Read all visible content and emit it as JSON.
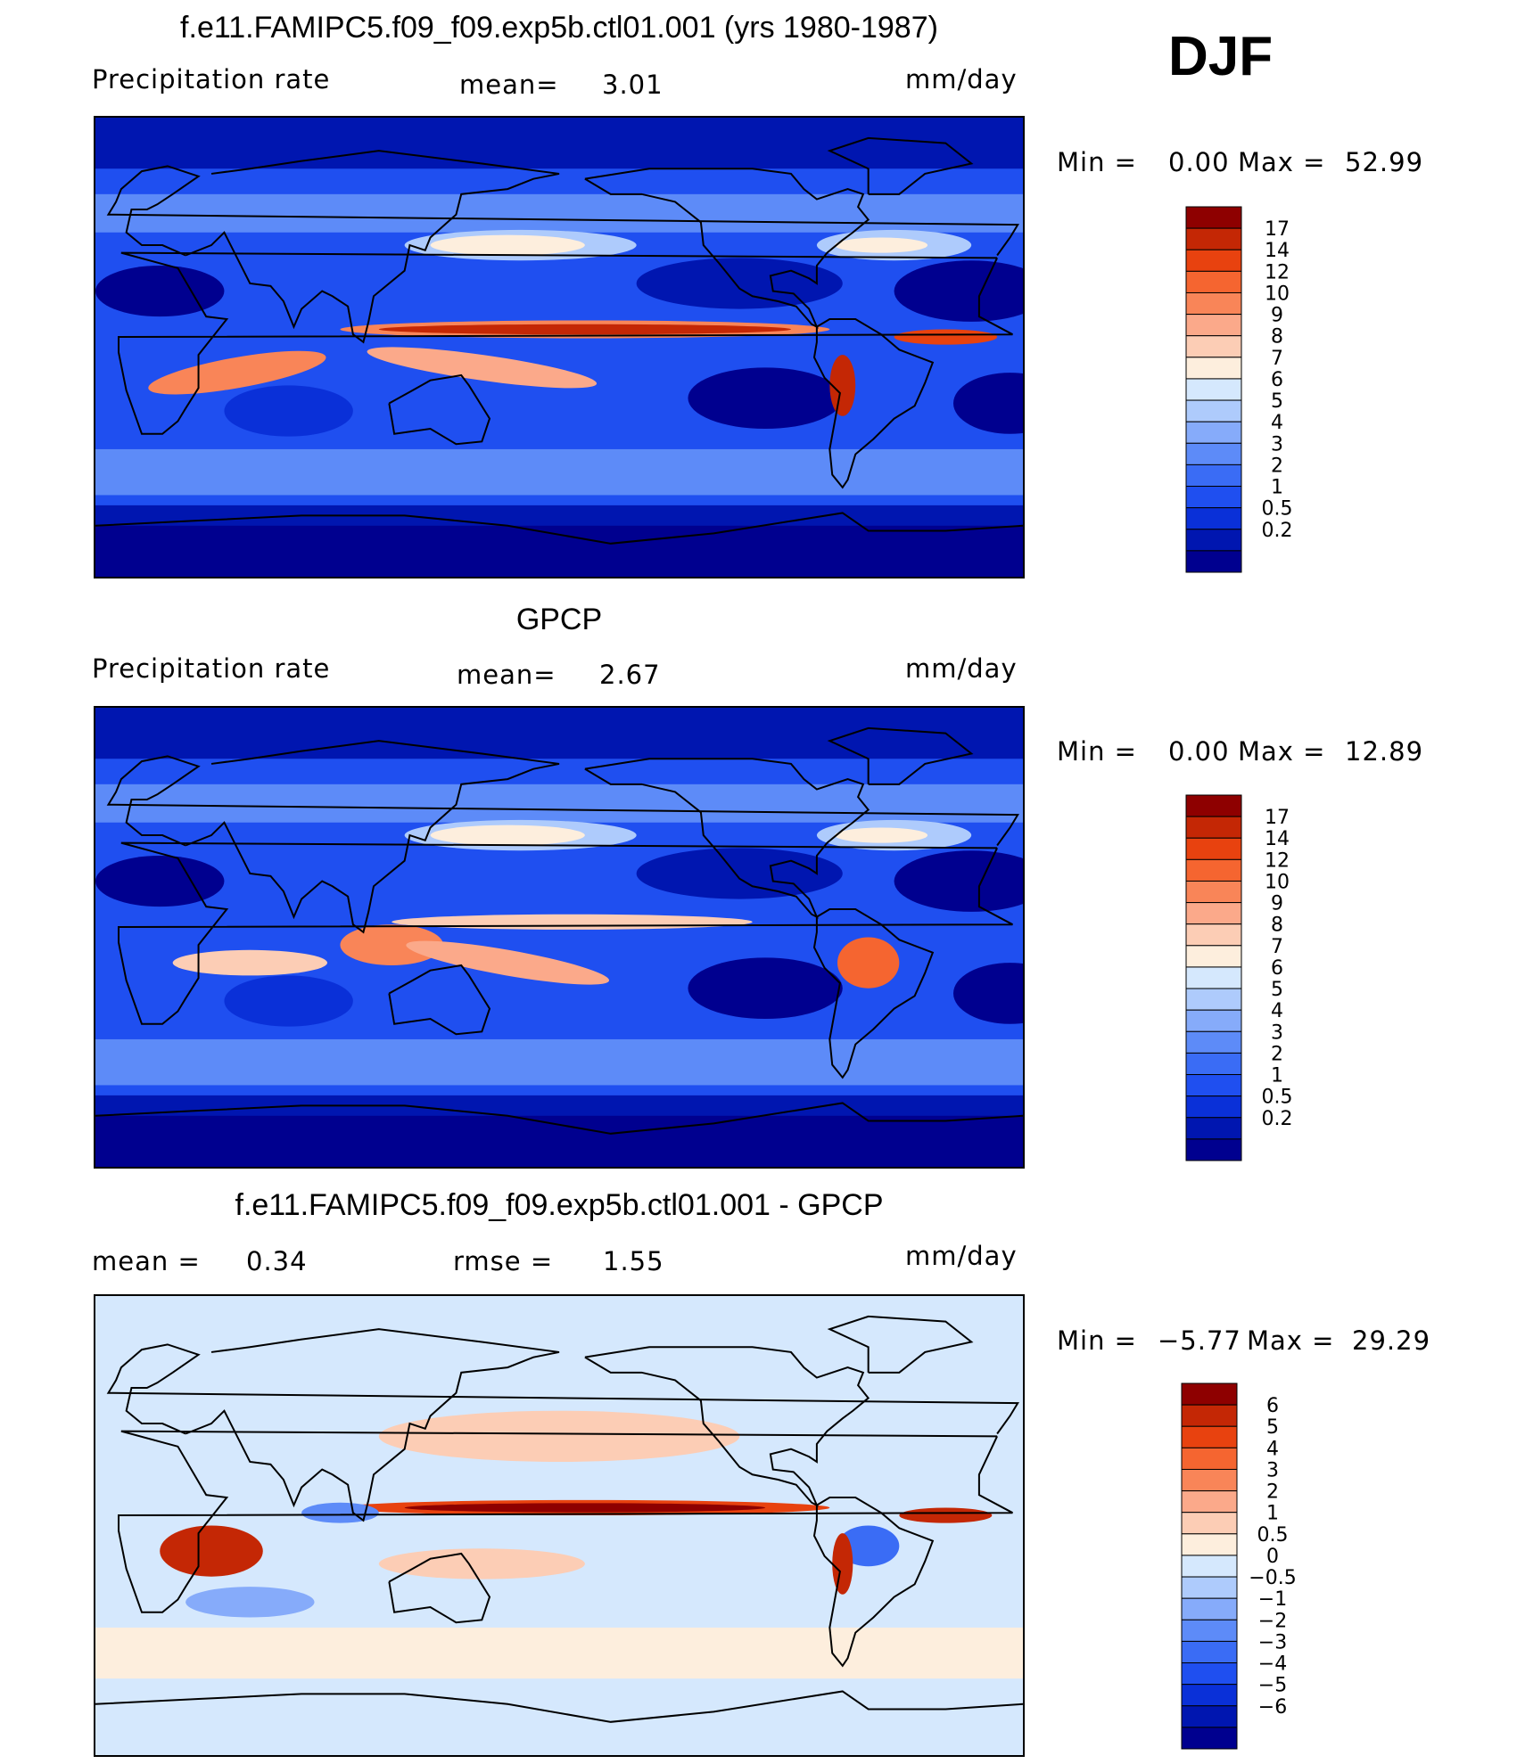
{
  "season": "DJF",
  "colors": {
    "precip_scale": [
      "#00008f",
      "#0016b0",
      "#0a30d8",
      "#1f4ff0",
      "#3a6cf5",
      "#5d8bf8",
      "#86abfa",
      "#aecbfc",
      "#d5e8fd",
      "#fdeedd",
      "#fccdb5",
      "#fba98a",
      "#f98558",
      "#f56530",
      "#e8420f",
      "#c42705",
      "#8e0000"
    ],
    "diff_scale": [
      "#00008f",
      "#0016b0",
      "#0a30d8",
      "#1f4ff0",
      "#3a6cf5",
      "#5d8bf8",
      "#86abfa",
      "#aecbfc",
      "#d5e8fd",
      "#fdeedd",
      "#fccdb5",
      "#fba98a",
      "#f98558",
      "#f56530",
      "#e8420f",
      "#c42705",
      "#8e0000"
    ]
  },
  "chart_data": [
    {
      "type": "heatmap",
      "title": "f.e11.FAMIPC5.f09_f09.exp5b.ctl01.001 (yrs 1980-1987)",
      "variable": "Precipitation  rate",
      "mean_label": "mean=",
      "mean": "3.01",
      "units": "mm/day",
      "min_label": "Min =",
      "min": "0.00",
      "max_label": "Max =",
      "max": "52.99",
      "levels": [
        "17",
        "14",
        "12",
        "10",
        "9",
        "8",
        "7",
        "6",
        "5",
        "4",
        "3",
        "2",
        "1",
        "0.5",
        "0.2"
      ],
      "colorscale": "precip_scale"
    },
    {
      "type": "heatmap",
      "title": "GPCP",
      "variable": "Precipitation  rate",
      "mean_label": "mean=",
      "mean": "2.67",
      "units": "mm/day",
      "min_label": "Min =",
      "min": "0.00",
      "max_label": "Max =",
      "max": "12.89",
      "levels": [
        "17",
        "14",
        "12",
        "10",
        "9",
        "8",
        "7",
        "6",
        "5",
        "4",
        "3",
        "2",
        "1",
        "0.5",
        "0.2"
      ],
      "colorscale": "precip_scale"
    },
    {
      "type": "heatmap",
      "title": "f.e11.FAMIPC5.f09_f09.exp5b.ctl01.001 - GPCP",
      "mean_label": "mean =",
      "mean": "0.34",
      "rmse_label": "rmse =",
      "rmse": "1.55",
      "units": "mm/day",
      "min_label": "Min =",
      "min": "−5.77",
      "max_label": "Max =",
      "max": "29.29",
      "levels": [
        "6",
        "5",
        "4",
        "3",
        "2",
        "1",
        "0.5",
        "0",
        "−0.5",
        "−1",
        "−2",
        "−3",
        "−4",
        "−5",
        "−6"
      ],
      "colorscale": "diff_scale"
    }
  ]
}
